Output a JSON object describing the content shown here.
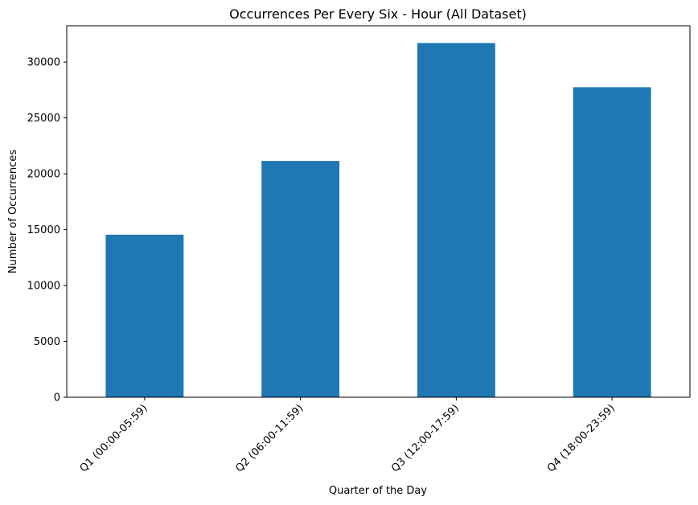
{
  "chart_data": {
    "type": "bar",
    "title": "Occurrences Per Every Six - Hour (All Dataset)",
    "xlabel": "Quarter of the Day",
    "ylabel": "Number of Occurrences",
    "categories": [
      "Q1 (00:00-05:59)",
      "Q2 (06:00-11:59)",
      "Q3 (12:00-17:59)",
      "Q4 (18:00-23:59)"
    ],
    "values": [
      14550,
      21150,
      31700,
      27750
    ],
    "ylim": [
      0,
      33250
    ],
    "yticks": [
      0,
      5000,
      10000,
      15000,
      20000,
      25000,
      30000
    ],
    "bar_color": "#1f77b4",
    "grid": false,
    "legend": "none"
  }
}
